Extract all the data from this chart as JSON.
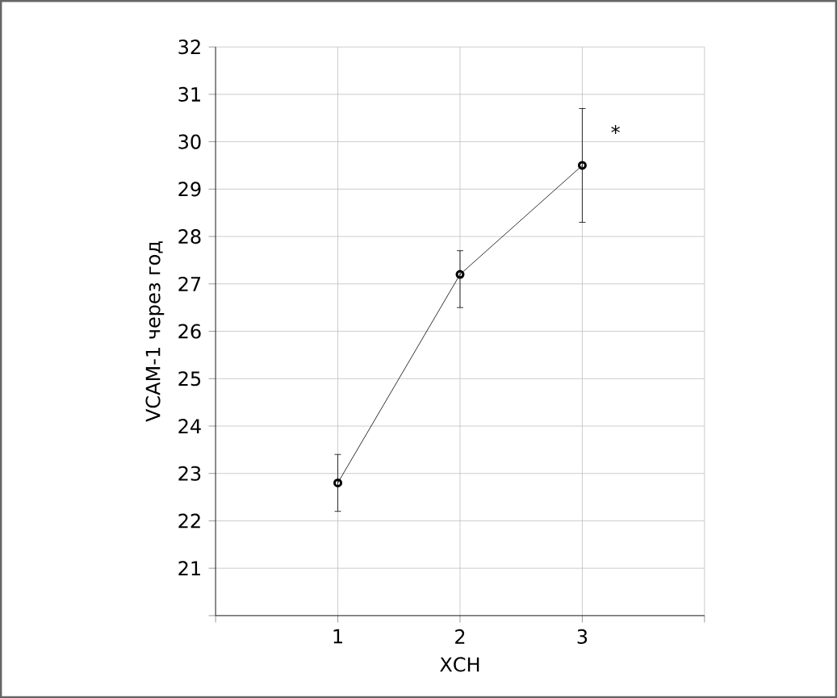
{
  "chart_data": {
    "type": "line",
    "xlabel": "ХСН",
    "ylabel": "VCAM-1 через год",
    "x": [
      1,
      2,
      3
    ],
    "values": [
      22.8,
      27.2,
      29.5
    ],
    "errors": [
      [
        22.2,
        23.4
      ],
      [
        26.5,
        27.7
      ],
      [
        28.3,
        30.7
      ]
    ],
    "color": "#000000",
    "marker": "circle",
    "line_style": "solid",
    "grid": true,
    "xlim": [
      0,
      4
    ],
    "xticks": [
      {
        "value": 0,
        "label": null
      },
      1,
      2,
      3,
      {
        "value": 4,
        "label": null
      }
    ],
    "ylim": [
      20,
      32
    ],
    "yticks": [
      {
        "value": 20,
        "label": null
      },
      21,
      22,
      23,
      24,
      25,
      26,
      27,
      28,
      29,
      30,
      31,
      32
    ],
    "annotations": [
      "*"
    ]
  }
}
